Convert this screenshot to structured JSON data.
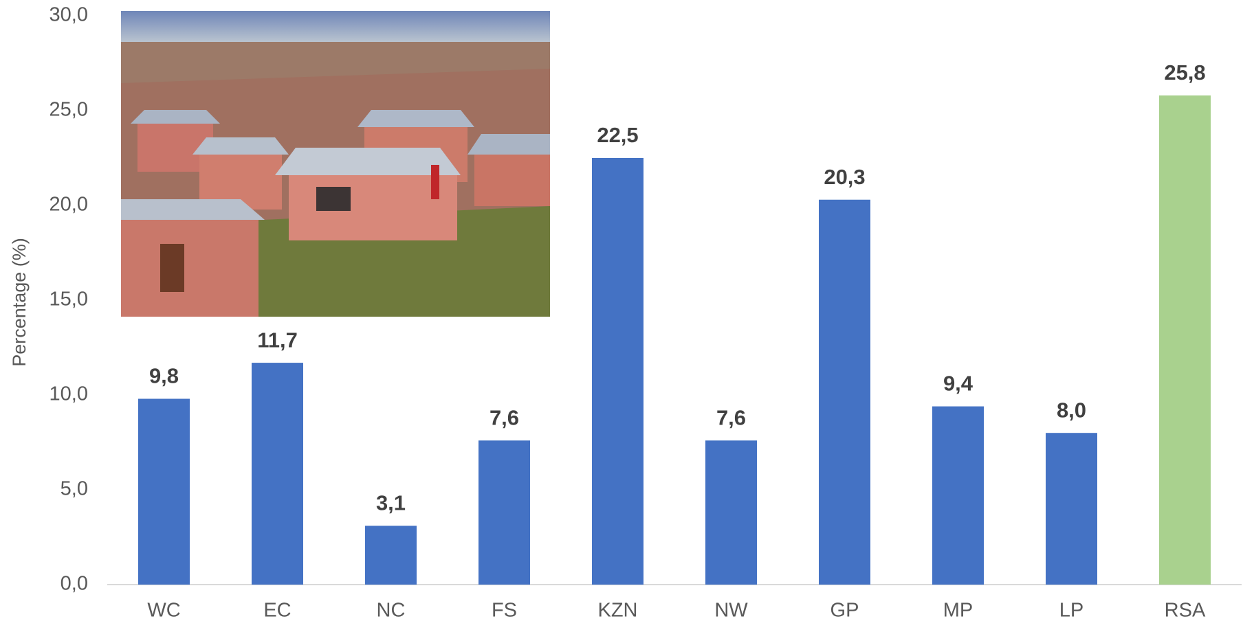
{
  "chart_data": {
    "type": "bar",
    "y_label": "Percentage (%)",
    "categories": [
      "WC",
      "EC",
      "NC",
      "FS",
      "KZN",
      "NW",
      "GP",
      "MP",
      "LP",
      "RSA"
    ],
    "values": [
      9.8,
      11.7,
      3.1,
      7.6,
      22.5,
      7.6,
      20.3,
      9.4,
      8.0,
      25.8
    ],
    "value_labels": [
      "9,8",
      "11,7",
      "3,1",
      "7,6",
      "22,5",
      "7,6",
      "20,3",
      "9,4",
      "8,0",
      "25,8"
    ],
    "colors": [
      "#4472c4",
      "#4472c4",
      "#4472c4",
      "#4472c4",
      "#4472c4",
      "#4472c4",
      "#4472c4",
      "#4472c4",
      "#4472c4",
      "#a9d18e"
    ],
    "ylim": [
      0,
      30
    ],
    "yticks": [
      {
        "value": 0,
        "label": "0,0"
      },
      {
        "value": 5,
        "label": "5,0"
      },
      {
        "value": 10,
        "label": "10,0"
      },
      {
        "value": 15,
        "label": "15,0"
      },
      {
        "value": 20,
        "label": "20,0"
      },
      {
        "value": 25,
        "label": "25,0"
      },
      {
        "value": 30,
        "label": "30,0"
      }
    ],
    "grid": false
  }
}
